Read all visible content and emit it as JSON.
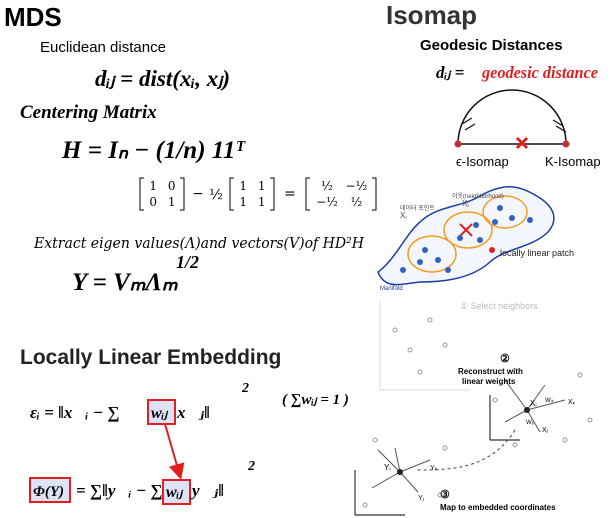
{
  "mds": {
    "title": "MDS",
    "distance_label": "Euclidean distance",
    "distance_formula": "dᵢⱼ = dist(xᵢ, xⱼ)",
    "centering_label": "Centering Matrix",
    "centering_formula": "H = Iₙ − (1/n) 11ᵀ",
    "matrix_equation": {
      "m1": [
        [
          "1",
          "0"
        ],
        [
          "0",
          "1"
        ]
      ],
      "op1": "−",
      "coef": "½",
      "m2": [
        [
          "1",
          "1"
        ],
        [
          "1",
          "1"
        ]
      ],
      "op2": "=",
      "m3": [
        [
          "½",
          "−½"
        ],
        [
          "−½",
          "½"
        ]
      ]
    },
    "eigen_label": "Extract eigen values(Λ)and vectors(V)of HD²H",
    "embedding_formula": "Y = VₘΛₘ",
    "embedding_power": "1/2"
  },
  "lle": {
    "title": "Locally Linear Embedding",
    "error_formula": [
      "εᵢ = ‖x⃗ᵢ − ∑",
      "wᵢⱼ",
      "x⃗ⱼ‖",
      "2"
    ],
    "constraint": "( ∑wᵢⱼ = 1 )",
    "cost_formula": [
      "Φ(Y)",
      "= ∑‖y⃗ᵢ − ∑",
      "wᵢⱼ",
      "y⃗ⱼ‖",
      "2"
    ]
  },
  "isomap": {
    "title": "Isomap",
    "subtitle": "Geodesic Distances",
    "formula_lhs": "dᵢⱼ =",
    "formula_rhs": "geodesic distance",
    "epsilon_label": "ϵ-Isomap",
    "k_label": "K-Isomap"
  },
  "patch_figure": {
    "neighborhood": "이웃(neighborhood)",
    "data_point": "데이터 포인트",
    "xi": "Xᵢ",
    "xj": "Xⱼ",
    "patch": "locally linear patch",
    "manifold": "Manifold"
  },
  "lle_figure": {
    "step1": "① Select neighbors",
    "step2": "②",
    "step2_text": [
      "Reconstruct with",
      "linear weights"
    ],
    "step3": "③",
    "step3_text": "Map to embedded coordinates",
    "xi": "Xᵢ",
    "xj": "Xⱼ",
    "xk": "Xₖ",
    "wik": "Wᵢₖ",
    "wij": "Wᵢⱼ",
    "yi": "Yᵢ",
    "yj": "Yⱼ",
    "yk": "Yₖ"
  }
}
